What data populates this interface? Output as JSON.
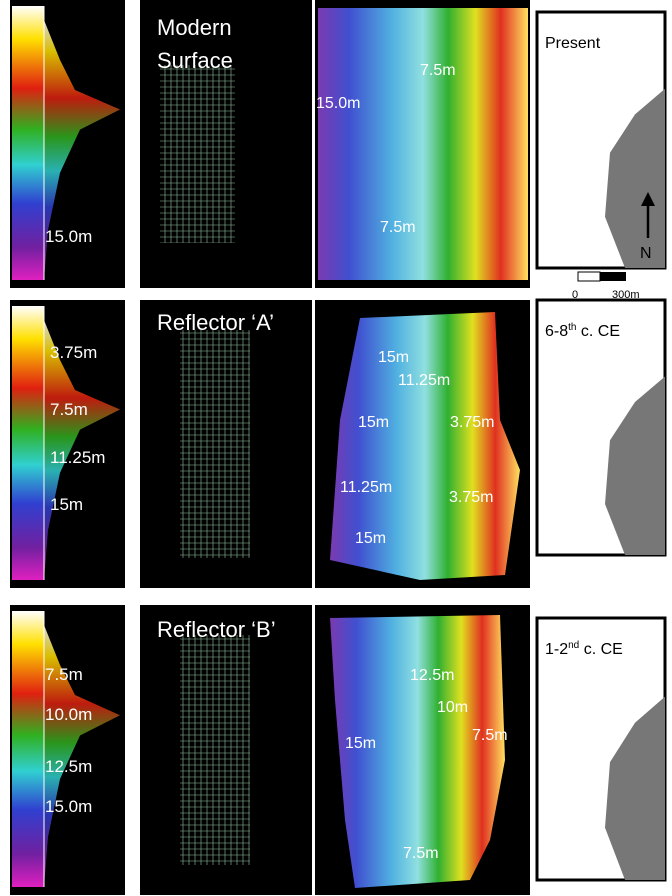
{
  "rows": [
    {
      "histogram_labels": [
        "15.0m"
      ],
      "title": [
        "Modern",
        "Surface"
      ],
      "map_labels": [
        "7.5m",
        "15.0m",
        "7.5m"
      ],
      "inset": {
        "title": [
          "Present"
        ],
        "north": "N",
        "scale": [
          "0",
          "300m"
        ]
      }
    },
    {
      "histogram_labels": [
        "3.75m",
        "7.5m",
        "11.25m",
        "15m"
      ],
      "title": [
        "Reflector ‘A’"
      ],
      "map_labels": [
        "15m",
        "11.25m",
        "15m",
        "3.75m",
        "11.25m",
        "3.75m",
        "15m"
      ],
      "inset": {
        "title": [
          "6-8",
          "th",
          " c. CE"
        ]
      }
    },
    {
      "histogram_labels": [
        "7.5m",
        "10.0m",
        "12.5m",
        "15.0m"
      ],
      "title": [
        "Reflector ‘B’"
      ],
      "map_labels": [
        "12.5m",
        "10m",
        "15m",
        "7.5m",
        "7.5m"
      ],
      "inset": {
        "title": [
          "1-2",
          "nd",
          " c. CE"
        ]
      }
    }
  ]
}
